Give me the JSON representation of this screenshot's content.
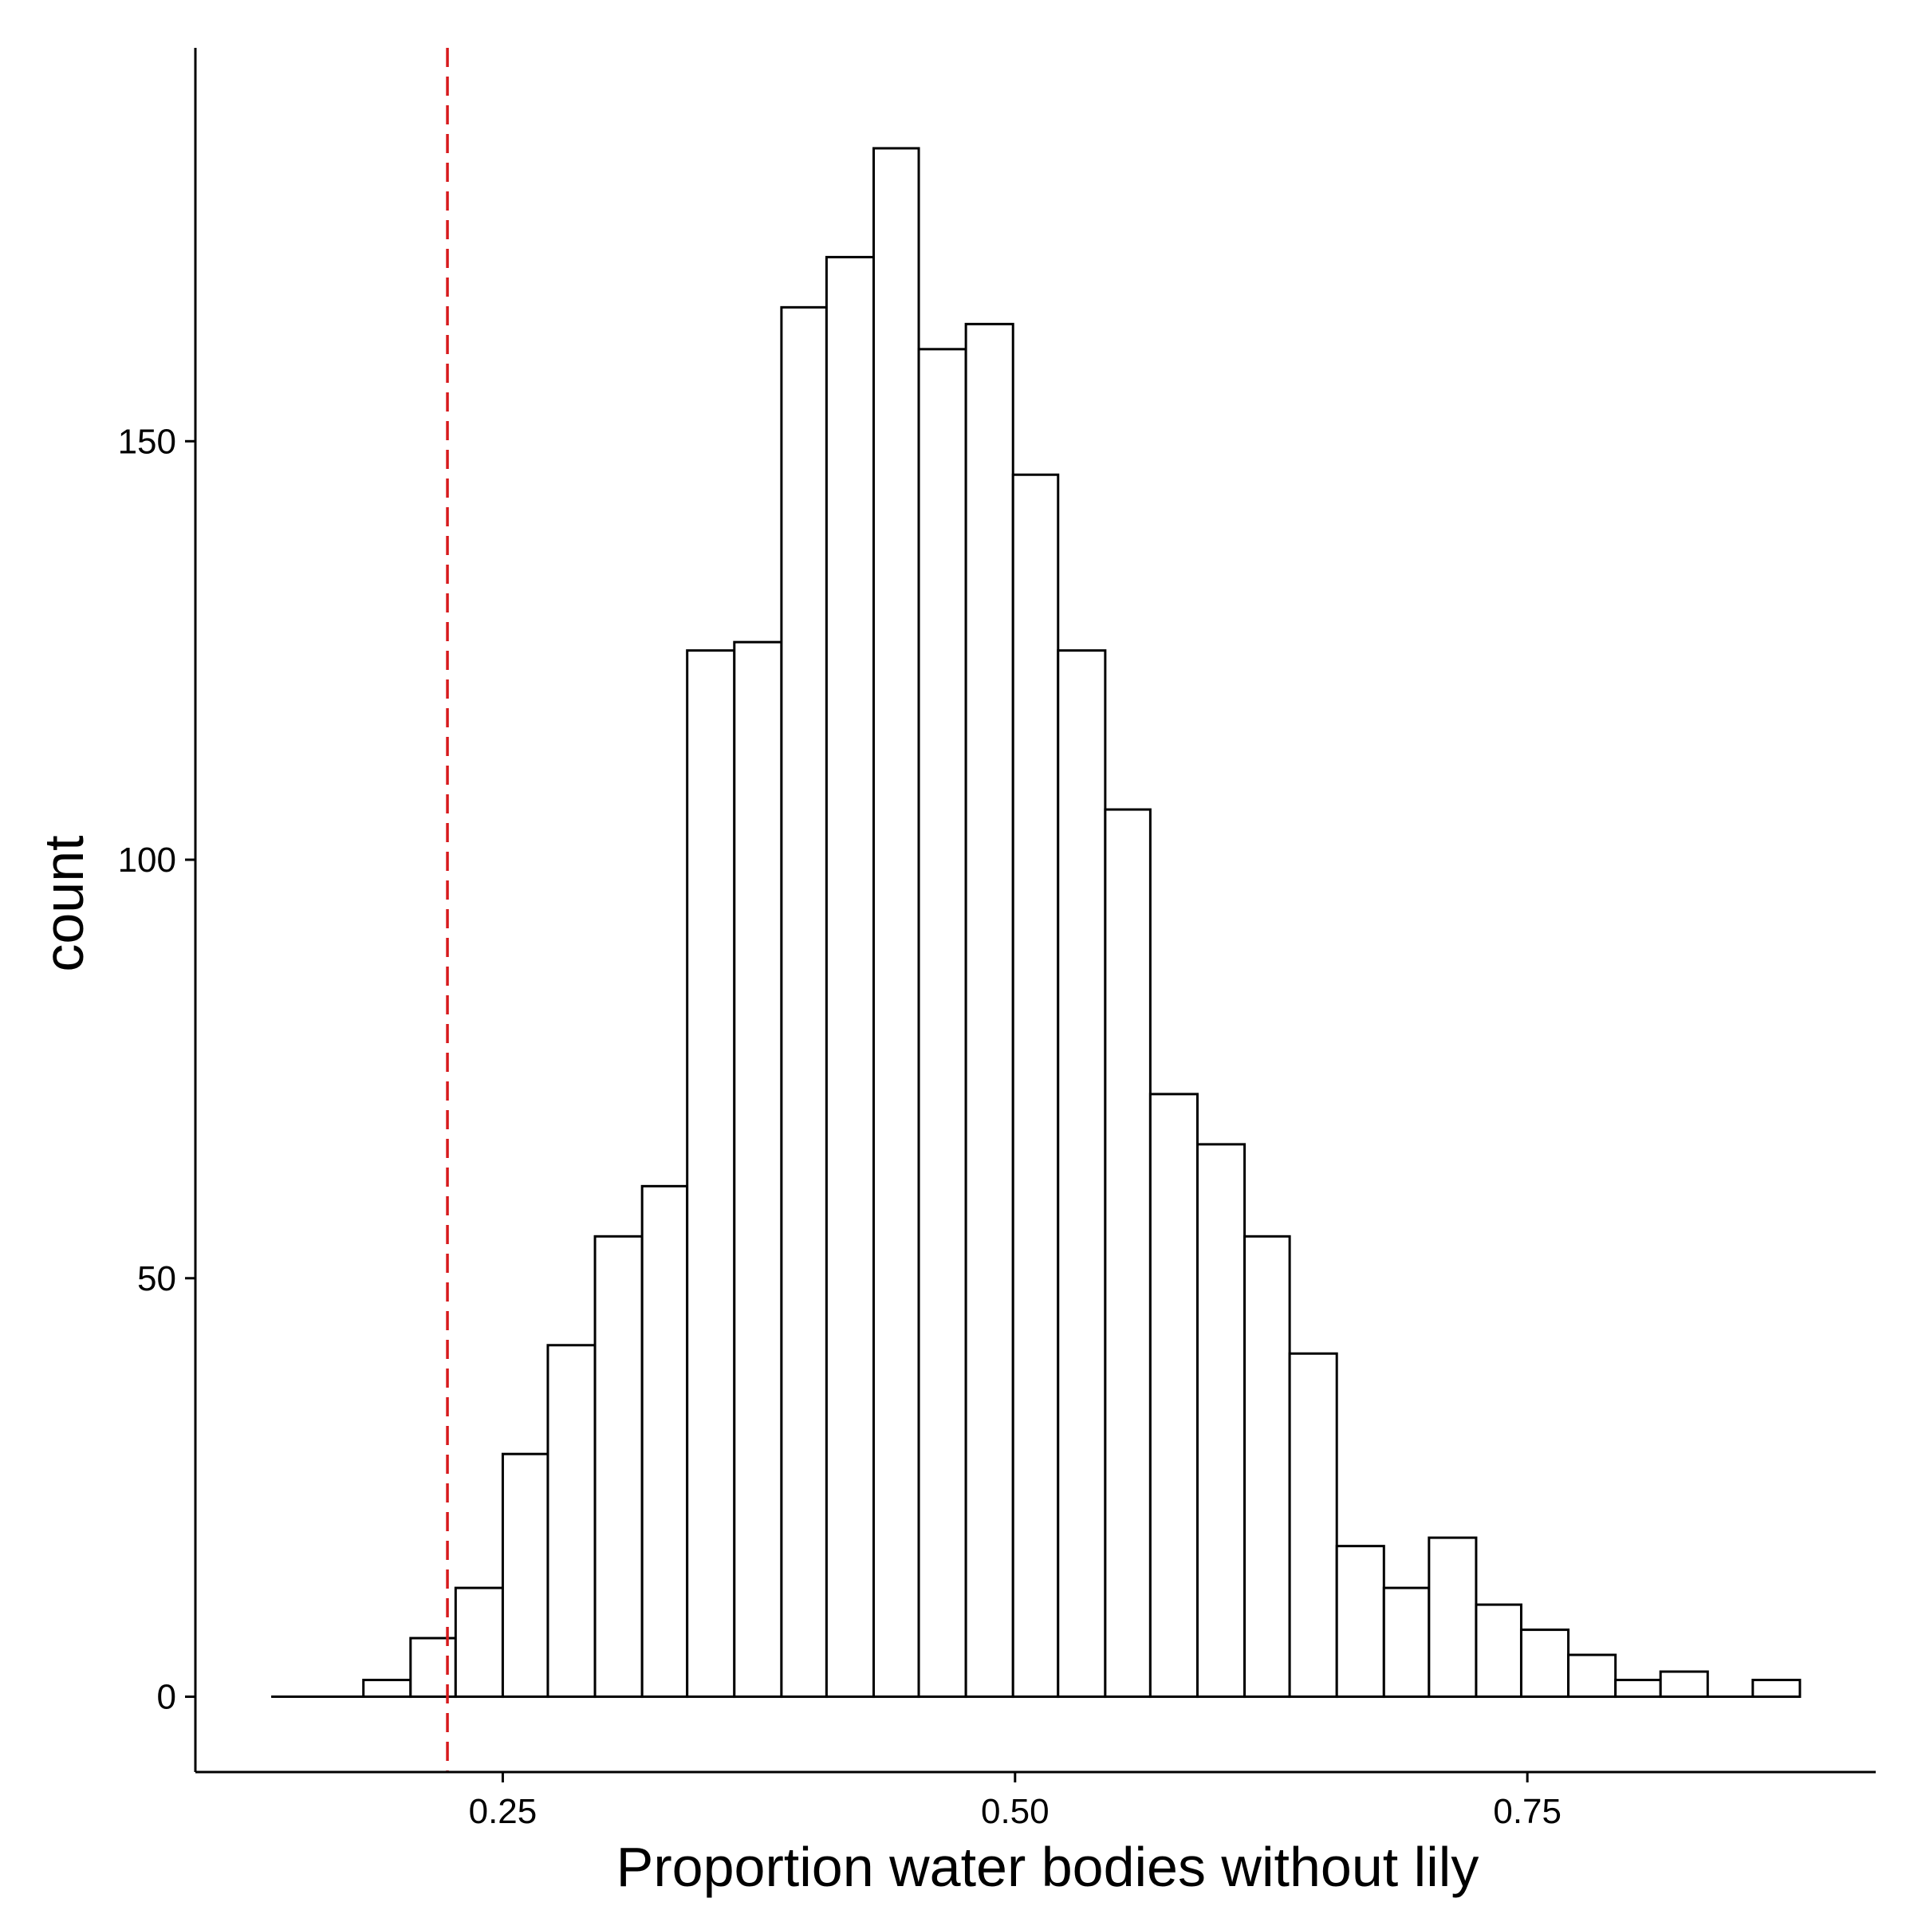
{
  "chart_data": {
    "type": "bar",
    "subtype": "histogram",
    "xlabel": "Proportion water bodies without lily",
    "ylabel": "count",
    "xlim": [
      0.1,
      0.92
    ],
    "ylim": [
      -9,
      197
    ],
    "x_ticks": [
      {
        "value": 0.25,
        "label": "0.25"
      },
      {
        "value": 0.5,
        "label": "0.50"
      },
      {
        "value": 0.75,
        "label": "0.75"
      }
    ],
    "y_ticks": [
      {
        "value": 0,
        "label": "0"
      },
      {
        "value": 50,
        "label": "50"
      },
      {
        "value": 100,
        "label": "100"
      },
      {
        "value": 150,
        "label": "150"
      }
    ],
    "baseline_range": [
      0.137,
      0.881
    ],
    "bins": [
      {
        "x0": 0.182,
        "x1": 0.205,
        "count": 2
      },
      {
        "x0": 0.205,
        "x1": 0.227,
        "count": 7
      },
      {
        "x0": 0.227,
        "x1": 0.25,
        "count": 13
      },
      {
        "x0": 0.25,
        "x1": 0.272,
        "count": 29
      },
      {
        "x0": 0.272,
        "x1": 0.295,
        "count": 42
      },
      {
        "x0": 0.295,
        "x1": 0.318,
        "count": 55
      },
      {
        "x0": 0.318,
        "x1": 0.34,
        "count": 61
      },
      {
        "x0": 0.34,
        "x1": 0.363,
        "count": 125
      },
      {
        "x0": 0.363,
        "x1": 0.386,
        "count": 126
      },
      {
        "x0": 0.386,
        "x1": 0.408,
        "count": 166
      },
      {
        "x0": 0.408,
        "x1": 0.431,
        "count": 172
      },
      {
        "x0": 0.431,
        "x1": 0.453,
        "count": 185
      },
      {
        "x0": 0.453,
        "x1": 0.476,
        "count": 161
      },
      {
        "x0": 0.476,
        "x1": 0.499,
        "count": 164
      },
      {
        "x0": 0.499,
        "x1": 0.521,
        "count": 146
      },
      {
        "x0": 0.521,
        "x1": 0.544,
        "count": 125
      },
      {
        "x0": 0.544,
        "x1": 0.566,
        "count": 106
      },
      {
        "x0": 0.566,
        "x1": 0.589,
        "count": 72
      },
      {
        "x0": 0.589,
        "x1": 0.612,
        "count": 66
      },
      {
        "x0": 0.612,
        "x1": 0.634,
        "count": 55
      },
      {
        "x0": 0.634,
        "x1": 0.657,
        "count": 41
      },
      {
        "x0": 0.657,
        "x1": 0.68,
        "count": 18
      },
      {
        "x0": 0.68,
        "x1": 0.702,
        "count": 13
      },
      {
        "x0": 0.702,
        "x1": 0.725,
        "count": 19
      },
      {
        "x0": 0.725,
        "x1": 0.747,
        "count": 11
      },
      {
        "x0": 0.747,
        "x1": 0.77,
        "count": 8
      },
      {
        "x0": 0.77,
        "x1": 0.793,
        "count": 5
      },
      {
        "x0": 0.793,
        "x1": 0.815,
        "count": 2
      },
      {
        "x0": 0.815,
        "x1": 0.838,
        "count": 3
      },
      {
        "x0": 0.86,
        "x1": 0.883,
        "count": 2
      }
    ],
    "reference_line": {
      "x": 0.223,
      "style": "dashed",
      "color": "#d7191c"
    },
    "grid": false,
    "legend": "none"
  }
}
